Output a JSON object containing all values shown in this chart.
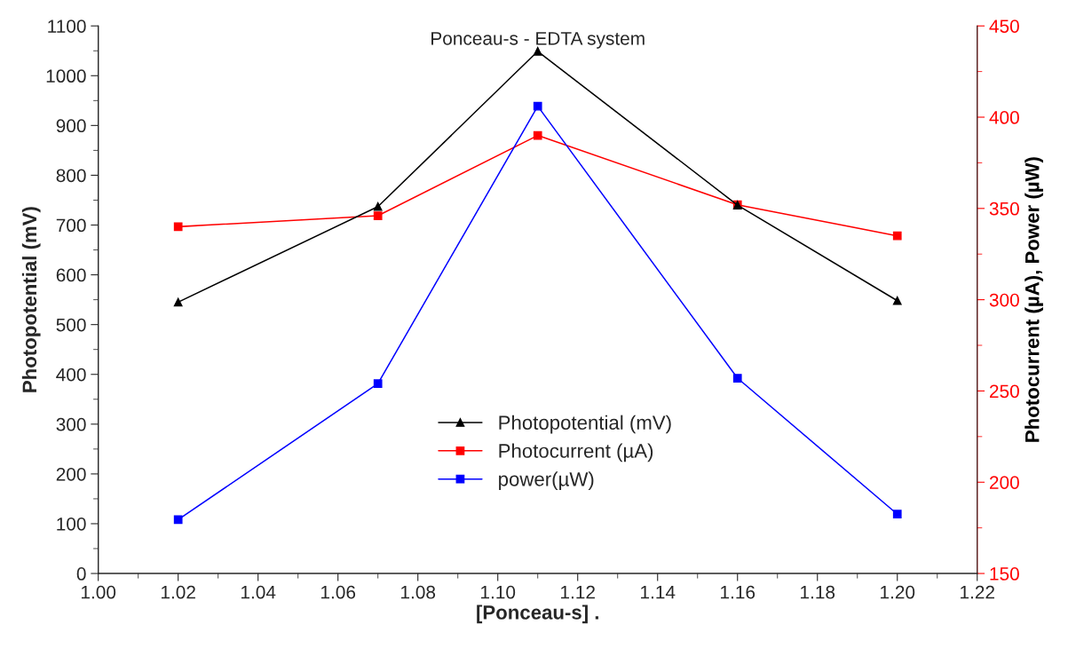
{
  "chart_data": {
    "type": "line",
    "title": "Ponceau-s - EDTA system",
    "xlabel": "[Ponceau-s] .",
    "ylabel": "Photopotential (mV)",
    "y2label": "Photocurrent (µA), Power (µW)",
    "x": [
      1.02,
      1.07,
      1.11,
      1.16,
      1.2
    ],
    "series": [
      {
        "name": "Photopotential (mV)",
        "color": "#000000",
        "marker": "triangle",
        "values": [
          545,
          737,
          1049,
          740,
          548
        ]
      },
      {
        "name": "Photocurrent (µA)",
        "color": "#ff0000",
        "marker": "square",
        "axis": "y2",
        "values": [
          340,
          346,
          390,
          352,
          335
        ]
      },
      {
        "name": "power(µW)",
        "color": "#0000ff",
        "marker": "square",
        "axis": "y2",
        "values": [
          179.5,
          254,
          406,
          257,
          182.5
        ]
      }
    ],
    "xlim": [
      1.0,
      1.22
    ],
    "xticks": [
      {
        "value": 1.0,
        "label": "1.00"
      },
      1.02,
      1.04,
      1.06,
      1.08,
      {
        "value": 1.1,
        "label": "1.10"
      },
      1.12,
      1.14,
      1.16,
      1.18,
      {
        "value": 1.2,
        "label": "1.20"
      },
      1.22
    ],
    "ylim": [
      0,
      1100
    ],
    "yticks": [
      0,
      100,
      200,
      300,
      400,
      500,
      600,
      700,
      800,
      900,
      1000,
      1100
    ],
    "y2lim": [
      150,
      450
    ],
    "y2ticks": [
      150,
      200,
      250,
      300,
      350,
      400,
      450
    ],
    "grid": false,
    "legend": "bottom",
    "line_style": "solid"
  }
}
